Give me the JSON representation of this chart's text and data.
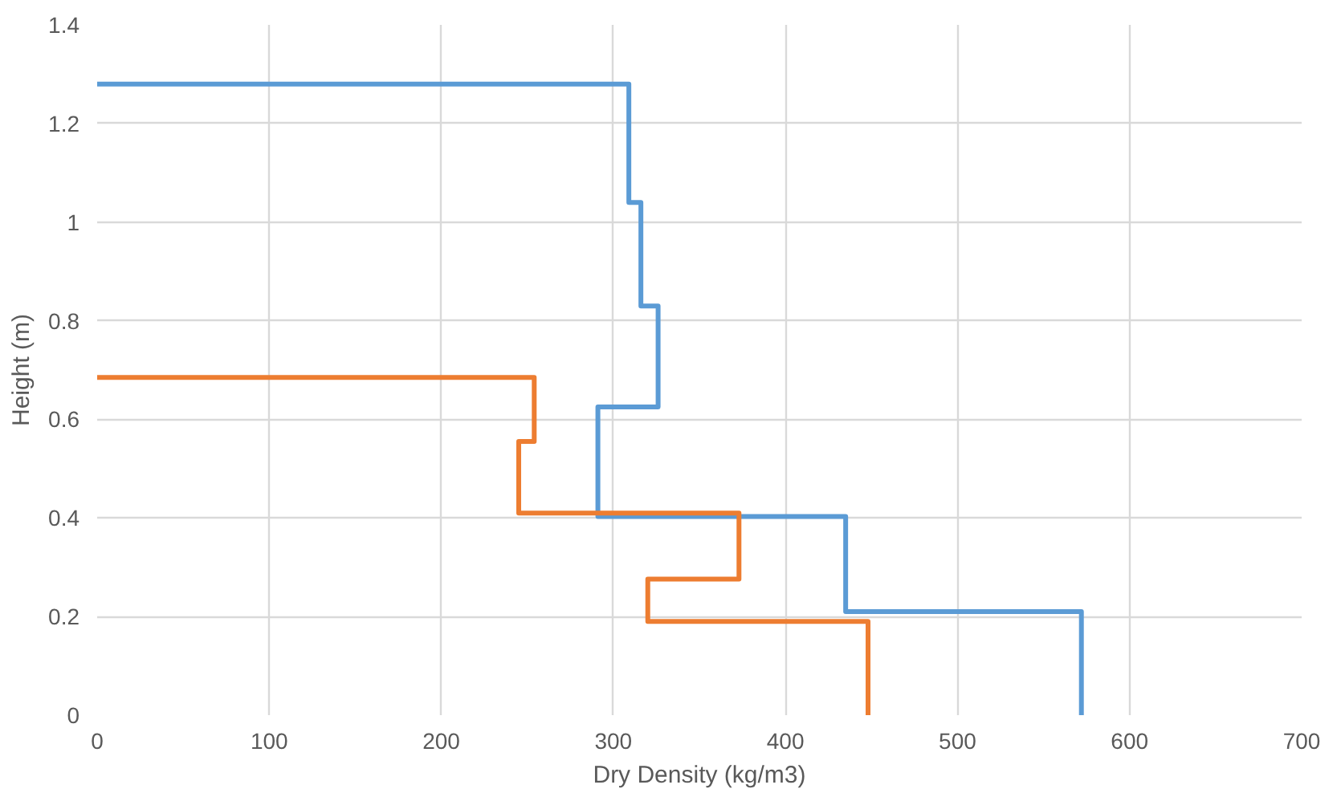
{
  "chart_data": {
    "type": "line",
    "xlabel": "Dry Density (kg/m3)",
    "ylabel": "Height (m)",
    "xlim": [
      0,
      700
    ],
    "xticks": [
      0,
      100,
      200,
      300,
      400,
      500,
      600,
      700
    ],
    "ylim": [
      0,
      1.4
    ],
    "yticks": [
      0,
      0.2,
      0.4,
      0.6,
      0.8,
      1,
      1.2,
      1.4
    ],
    "grid": true,
    "marker": "none",
    "line_style": "solid",
    "series": [
      {
        "color": "#5b9bd5",
        "x": [
          0,
          309,
          309,
          316,
          316,
          326,
          326,
          291,
          291,
          435,
          435,
          572,
          572
        ],
        "values": [
          1.28,
          1.28,
          1.04,
          1.04,
          0.83,
          0.83,
          0.625,
          0.625,
          0.403,
          0.403,
          0.21,
          0.21,
          0
        ]
      },
      {
        "color": "#ed7d31",
        "x": [
          0,
          254,
          254,
          245,
          245,
          373,
          373,
          320,
          320,
          448,
          448
        ],
        "values": [
          0.685,
          0.685,
          0.555,
          0.555,
          0.41,
          0.41,
          0.276,
          0.276,
          0.19,
          0.19,
          0
        ]
      }
    ]
  }
}
